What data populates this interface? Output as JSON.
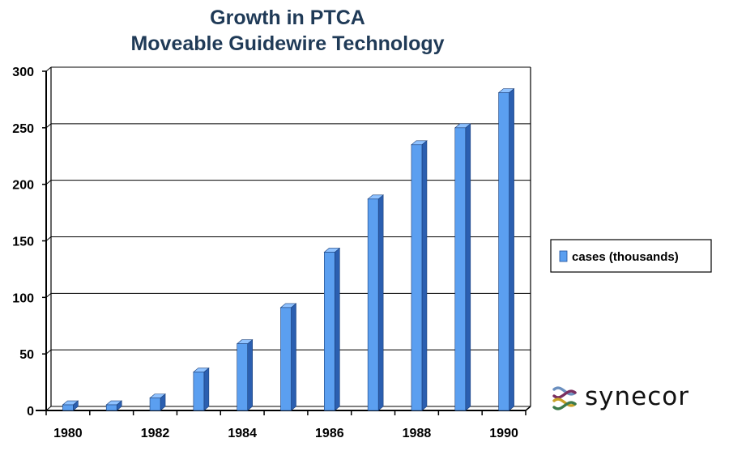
{
  "chart_data": {
    "type": "bar",
    "title": "Growth in PTCA",
    "subtitle": "Moveable Guidewire Technology",
    "xlabel": "",
    "ylabel": "",
    "categories": [
      "1980",
      "1981",
      "1982",
      "1983",
      "1984",
      "1985",
      "1986",
      "1987",
      "1988",
      "1989",
      "1990"
    ],
    "x_tick_labels": [
      "1980",
      "1982",
      "1984",
      "1986",
      "1988",
      "1990"
    ],
    "series": [
      {
        "name": "cases (thousands)",
        "values": [
          5,
          5,
          11,
          34,
          59,
          91,
          140,
          187,
          235,
          250,
          281
        ]
      }
    ],
    "ylim": [
      0,
      300
    ],
    "y_ticks": [
      0,
      50,
      100,
      150,
      200,
      250,
      300
    ],
    "grid": true,
    "legend": "right",
    "colors": {
      "bar_front": "#5b9ff0",
      "bar_side": "#2b5fb0",
      "bar_top": "#8fc2ff",
      "grid": "#000000"
    }
  },
  "logo": {
    "text": "synecor"
  }
}
